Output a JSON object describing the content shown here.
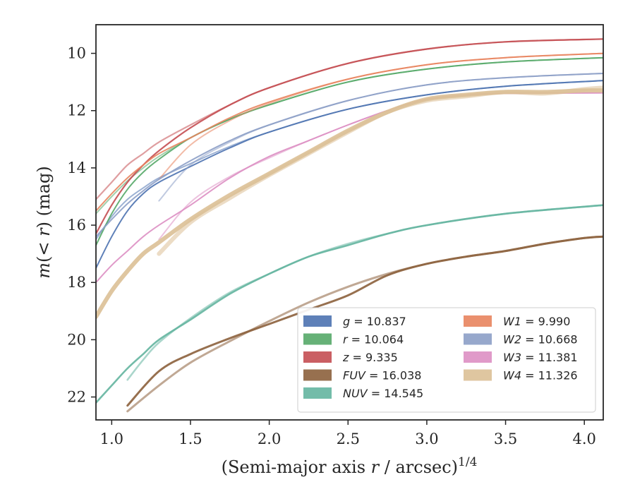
{
  "chart_data": {
    "type": "line",
    "xlabel": "(Semi-major axis r / arcsec)^1/4",
    "ylabel": "m(< r) (mag)",
    "xlim": [
      0.9,
      4.12
    ],
    "ylim": [
      22.8,
      9.0
    ],
    "y_inverted": true,
    "x_ticks": [
      "1.0",
      "1.5",
      "2.0",
      "2.5",
      "3.0",
      "3.5",
      "4.0"
    ],
    "y_ticks": [
      "10",
      "12",
      "14",
      "16",
      "18",
      "20",
      "22"
    ],
    "grid": false,
    "legend_position": "lower-right",
    "legend_columns": 2,
    "series": [
      {
        "name": "g = 10.837",
        "legend": {
          "sym": "g",
          "val": "10.837"
        },
        "color": "#4c72b0",
        "x": [
          0.9,
          1.0,
          1.1,
          1.2,
          1.3,
          1.5,
          1.75,
          2.0,
          2.5,
          3.0,
          3.5,
          4.12
        ],
        "y": [
          17.5,
          16.4,
          15.5,
          14.9,
          14.5,
          13.95,
          13.3,
          12.75,
          11.95,
          11.45,
          11.15,
          10.95
        ],
        "y_alt": [
          16.5,
          15.7,
          15.1,
          14.7,
          14.35,
          13.85,
          13.25,
          12.75,
          11.95,
          11.45,
          11.15,
          10.95
        ],
        "width": 2.0
      },
      {
        "name": "r = 10.064",
        "legend": {
          "sym": "r",
          "val": "10.064"
        },
        "color": "#55a868",
        "x": [
          0.9,
          1.0,
          1.1,
          1.2,
          1.3,
          1.5,
          1.75,
          2.0,
          2.5,
          3.0,
          3.5,
          4.12
        ],
        "y": [
          16.7,
          15.6,
          14.75,
          14.15,
          13.7,
          12.95,
          12.3,
          11.8,
          11.0,
          10.55,
          10.3,
          10.15
        ],
        "y_alt": [
          15.6,
          15.0,
          14.45,
          14.0,
          13.6,
          12.95,
          12.3,
          11.8,
          11.0,
          10.55,
          10.3,
          10.15
        ],
        "width": 2.0
      },
      {
        "name": "z = 9.335",
        "legend": {
          "sym": "z",
          "val": "9.335"
        },
        "color": "#c44e52",
        "x": [
          0.9,
          1.0,
          1.1,
          1.2,
          1.3,
          1.5,
          1.75,
          2.0,
          2.5,
          3.0,
          3.5,
          4.12
        ],
        "y": [
          16.3,
          15.3,
          14.5,
          13.9,
          13.4,
          12.6,
          11.8,
          11.2,
          10.35,
          9.85,
          9.6,
          9.5
        ],
        "y_alt": [
          15.1,
          14.5,
          13.9,
          13.5,
          13.1,
          12.5,
          11.8,
          11.2,
          10.35,
          9.85,
          9.6,
          9.5
        ],
        "width": 2.2
      },
      {
        "name": "FUV = 16.038",
        "legend": {
          "sym": "FUV",
          "val": "16.038"
        },
        "color": "#8c613c",
        "x": [
          1.1,
          1.3,
          1.5,
          1.75,
          2.0,
          2.25,
          2.5,
          2.75,
          3.0,
          3.25,
          3.5,
          3.75,
          4.0,
          4.12
        ],
        "y": [
          22.3,
          21.1,
          20.5,
          19.95,
          19.45,
          18.95,
          18.45,
          17.75,
          17.35,
          17.1,
          16.9,
          16.65,
          16.45,
          16.4
        ],
        "y_alt": [
          22.5,
          21.6,
          20.8,
          20.05,
          19.35,
          18.7,
          18.15,
          17.7,
          17.35,
          17.1,
          16.9,
          16.65,
          16.45,
          16.4
        ],
        "width": 3.0
      },
      {
        "name": "NUV = 14.545",
        "legend": {
          "sym": "NUV",
          "val": "14.545"
        },
        "color": "#64b5a0",
        "x": [
          0.9,
          1.0,
          1.1,
          1.2,
          1.3,
          1.5,
          1.75,
          2.0,
          2.25,
          2.5,
          2.75,
          3.0,
          3.5,
          4.12
        ],
        "y": [
          22.2,
          21.6,
          21.0,
          20.5,
          20.0,
          19.3,
          18.4,
          17.7,
          17.1,
          16.7,
          16.3,
          16.0,
          15.6,
          15.3
        ],
        "y_alt": [
          null,
          null,
          21.4,
          20.7,
          20.1,
          19.25,
          18.35,
          17.7,
          17.1,
          16.65,
          16.3,
          16.0,
          15.6,
          15.3
        ],
        "width": 2.6
      },
      {
        "name": "W1 = 9.990",
        "legend": {
          "sym": "W1",
          "val": "9.990"
        },
        "color": "#e8845e",
        "x": [
          0.9,
          1.0,
          1.1,
          1.2,
          1.3,
          1.5,
          1.75,
          2.0,
          2.5,
          3.0,
          3.5,
          4.12
        ],
        "y": [
          15.5,
          14.9,
          14.35,
          13.9,
          13.5,
          12.95,
          12.25,
          11.7,
          10.9,
          10.4,
          10.15,
          10.0
        ],
        "y_alt": [
          null,
          null,
          null,
          null,
          14.4,
          13.2,
          12.35,
          11.75,
          10.9,
          10.4,
          10.15,
          10.0
        ],
        "width": 2.0
      },
      {
        "name": "W2 = 10.668",
        "legend": {
          "sym": "W2",
          "val": "10.668"
        },
        "color": "#8c9fc6",
        "x": [
          0.9,
          1.0,
          1.1,
          1.2,
          1.3,
          1.5,
          1.75,
          2.0,
          2.5,
          3.0,
          3.5,
          4.12
        ],
        "y": [
          16.4,
          15.8,
          15.25,
          14.8,
          14.4,
          13.75,
          13.05,
          12.5,
          11.65,
          11.1,
          10.85,
          10.7
        ],
        "y_alt": [
          null,
          null,
          null,
          null,
          15.15,
          13.9,
          13.1,
          12.5,
          11.65,
          11.1,
          10.85,
          10.7
        ],
        "width": 2.0
      },
      {
        "name": "W3 = 11.381",
        "legend": {
          "sym": "W3",
          "val": "11.381"
        },
        "color": "#dd8fc3",
        "x": [
          0.9,
          1.0,
          1.1,
          1.2,
          1.3,
          1.5,
          1.75,
          2.0,
          2.25,
          2.5,
          2.75,
          3.0,
          3.25,
          3.5,
          4.12
        ],
        "y": [
          18.0,
          17.4,
          16.9,
          16.4,
          16.0,
          15.3,
          14.35,
          13.6,
          13.05,
          12.5,
          12.0,
          11.6,
          11.45,
          11.4,
          11.38
        ],
        "y_alt": [
          null,
          null,
          null,
          null,
          16.5,
          15.2,
          14.3,
          13.65,
          13.05,
          12.5,
          12.0,
          11.6,
          11.45,
          11.4,
          11.38
        ],
        "width": 2.0
      },
      {
        "name": "W4 = 11.326",
        "legend": {
          "sym": "W4",
          "val": "11.326"
        },
        "color": "#dcc096",
        "x": [
          0.9,
          1.0,
          1.1,
          1.2,
          1.3,
          1.5,
          1.75,
          2.0,
          2.25,
          2.5,
          2.75,
          3.0,
          3.25,
          3.5,
          3.75,
          4.0,
          4.12
        ],
        "y": [
          19.2,
          18.3,
          17.6,
          17.0,
          16.6,
          15.8,
          14.95,
          14.2,
          13.45,
          12.7,
          12.05,
          11.6,
          11.45,
          11.35,
          11.35,
          11.3,
          11.3
        ],
        "y_alt": [
          null,
          null,
          null,
          null,
          17.0,
          15.9,
          15.05,
          14.25,
          13.5,
          12.75,
          12.05,
          11.65,
          11.5,
          11.35,
          11.4,
          11.25,
          11.2
        ],
        "width": 6.0
      }
    ]
  }
}
